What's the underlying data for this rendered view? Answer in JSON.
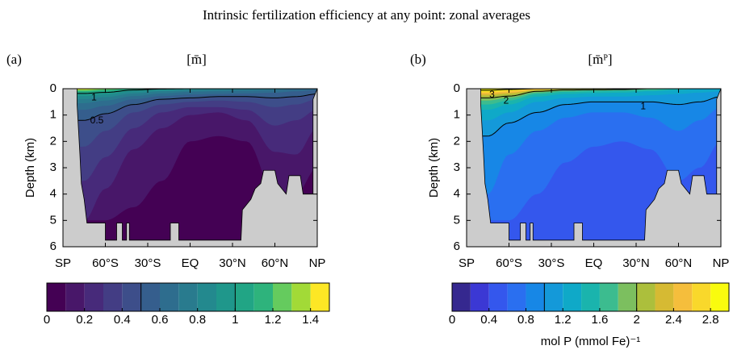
{
  "title": "Intrinsic fertilization efficiency at any point: zonal averages",
  "chart_data": [
    {
      "type": "contour",
      "panel_label": "(a)",
      "title": "[m̄]",
      "ylabel": "Depth (km)",
      "xlim": [
        -90,
        90
      ],
      "xticks": [
        {
          "value": -90,
          "label": "SP"
        },
        {
          "value": -60,
          "label": "60°S"
        },
        {
          "value": -30,
          "label": "30°S"
        },
        {
          "value": 0,
          "label": "EQ"
        },
        {
          "value": 30,
          "label": "30°N"
        },
        {
          "value": 60,
          "label": "60°N"
        },
        {
          "value": 90,
          "label": "NP"
        }
      ],
      "ylim": [
        0,
        6
      ],
      "yticks": [
        0,
        1,
        2,
        3,
        4,
        5,
        6
      ],
      "y_reversed": true,
      "levels": [
        0,
        0.1,
        0.2,
        0.3,
        0.4,
        0.5,
        0.6,
        0.7,
        0.8,
        0.9,
        1,
        1.1,
        1.2,
        1.3,
        1.4,
        1.5
      ],
      "colors": [
        "#440154",
        "#481769",
        "#472a7a",
        "#433d84",
        "#3d4e8a",
        "#355e8d",
        "#2e6d8e",
        "#297b8e",
        "#23898e",
        "#1f978b",
        "#21a585",
        "#2eb37c",
        "#65cb5e",
        "#a2da37",
        "#fde725"
      ],
      "contour_lines": [
        1,
        0.5
      ],
      "colorbar_ticks": [
        0,
        0.2,
        0.4,
        0.6,
        0.8,
        1,
        1.2,
        1.4
      ]
    },
    {
      "type": "contour",
      "panel_label": "(b)",
      "title": "[m̄ᴾ]",
      "ylabel": "Depth (km)",
      "xlim": [
        -90,
        90
      ],
      "xticks": [
        {
          "value": -90,
          "label": "SP"
        },
        {
          "value": -60,
          "label": "60°S"
        },
        {
          "value": -30,
          "label": "30°S"
        },
        {
          "value": 0,
          "label": "EQ"
        },
        {
          "value": 30,
          "label": "30°N"
        },
        {
          "value": 60,
          "label": "60°N"
        },
        {
          "value": 90,
          "label": "NP"
        }
      ],
      "ylim": [
        0,
        6
      ],
      "yticks": [
        0,
        1,
        2,
        3,
        4,
        5,
        6
      ],
      "y_reversed": true,
      "levels": [
        0,
        0.2,
        0.4,
        0.6,
        0.8,
        1,
        1.2,
        1.4,
        1.6,
        1.8,
        2,
        2.2,
        2.4,
        2.6,
        2.8,
        3
      ],
      "colors": [
        "#35288f",
        "#3b38d4",
        "#3457ed",
        "#2a6ff0",
        "#1787e6",
        "#1499d9",
        "#0fa9c8",
        "#1ab4ad",
        "#3cbc8f",
        "#7cbf5f",
        "#acbf3c",
        "#d6ba33",
        "#f5be3c",
        "#f9d82b",
        "#f9fb0e"
      ],
      "contour_lines": [
        3,
        2,
        1
      ],
      "colorbar_ticks": [
        0,
        0.4,
        0.8,
        1.2,
        1.6,
        2,
        2.4,
        2.8
      ],
      "colorbar_label": "mol P (mmol Fe)⁻¹"
    }
  ]
}
